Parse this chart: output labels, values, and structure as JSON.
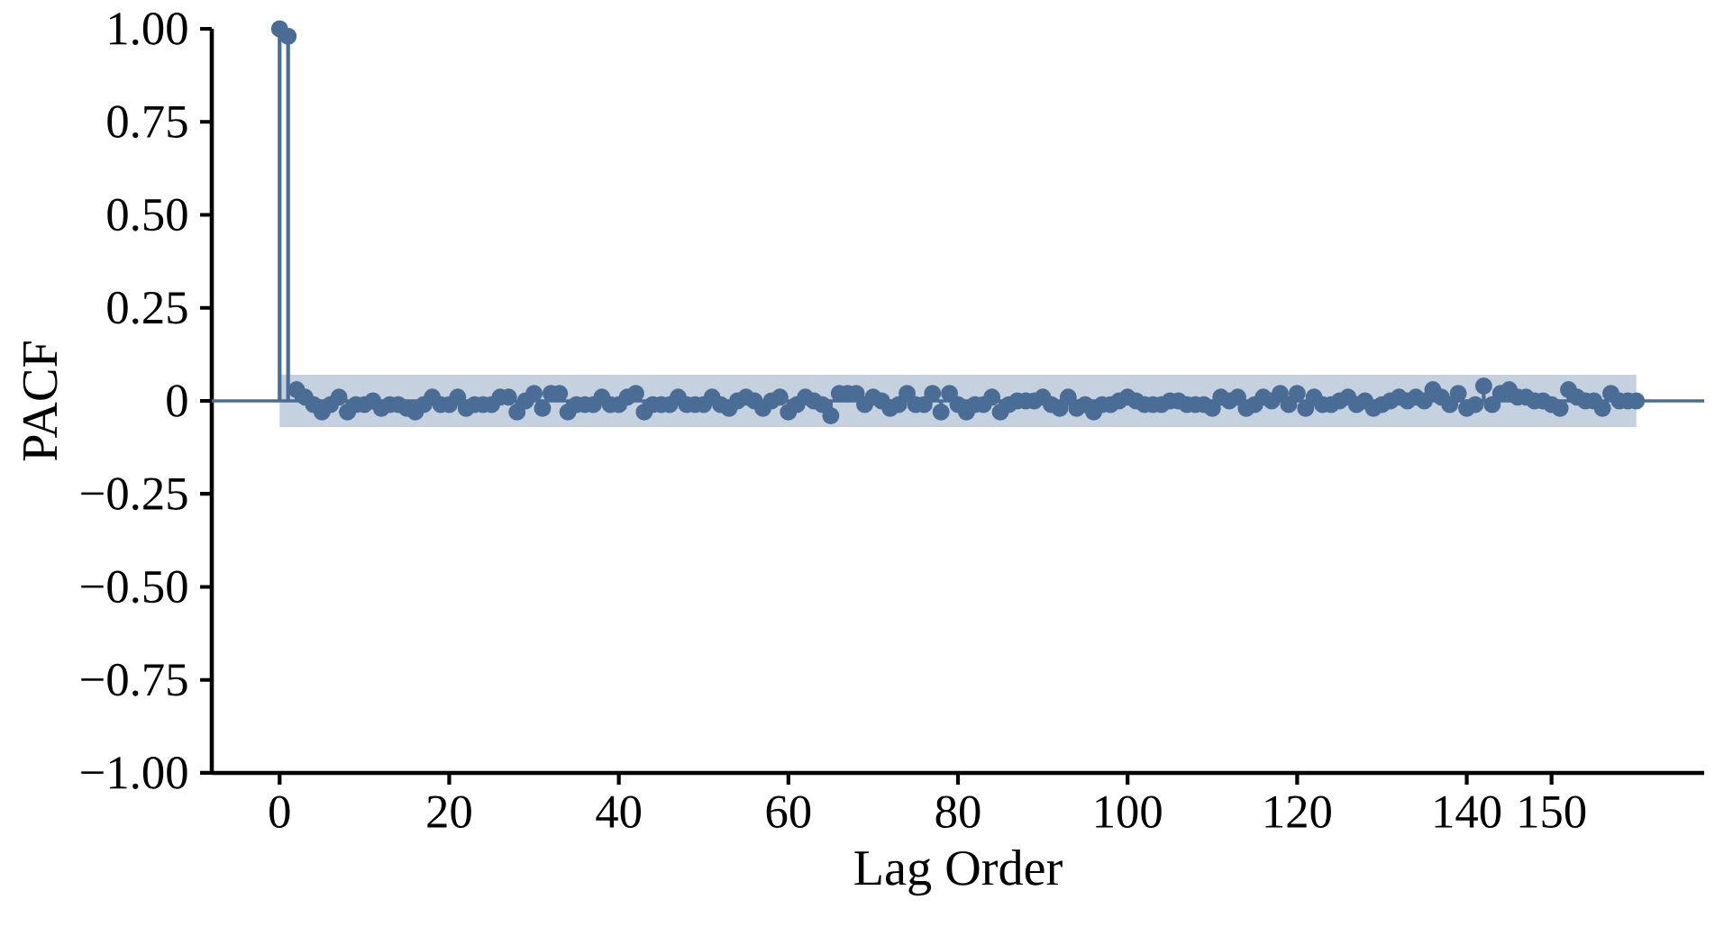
{
  "chart_data": {
    "type": "lollipop",
    "xlabel": "Lag Order",
    "ylabel": "PACF",
    "color": "#4a6d96",
    "marker": "circle",
    "x": [
      0,
      1,
      2,
      3,
      4,
      5,
      6,
      7,
      8,
      9,
      10,
      11,
      12,
      13,
      14,
      15,
      16,
      17,
      18,
      19,
      20,
      21,
      22,
      23,
      24,
      25,
      26,
      27,
      28,
      29,
      30,
      31,
      32,
      33,
      34,
      35,
      36,
      37,
      38,
      39,
      40,
      41,
      42,
      43,
      44,
      45,
      46,
      47,
      48,
      49,
      50,
      51,
      52,
      53,
      54,
      55,
      56,
      57,
      58,
      59,
      60,
      61,
      62,
      63,
      64,
      65,
      66,
      67,
      68,
      69,
      70,
      71,
      72,
      73,
      74,
      75,
      76,
      77,
      78,
      79,
      80,
      81,
      82,
      83,
      84,
      85,
      86,
      87,
      88,
      89,
      90,
      91,
      92,
      93,
      94,
      95,
      96,
      97,
      98,
      99,
      100,
      101,
      102,
      103,
      104,
      105,
      106,
      107,
      108,
      109,
      110,
      111,
      112,
      113,
      114,
      115,
      116,
      117,
      118,
      119,
      120,
      121,
      122,
      123,
      124,
      125,
      126,
      127,
      128,
      129,
      130,
      131,
      132,
      133,
      134,
      135,
      136,
      137,
      138,
      139,
      140,
      141,
      142,
      143,
      144,
      145,
      146,
      147,
      148,
      149,
      150,
      151,
      152,
      153,
      154,
      155,
      156,
      157,
      158,
      159,
      160
    ],
    "values": [
      1.0,
      0.98,
      0.03,
      0.01,
      -0.01,
      -0.03,
      -0.01,
      0.01,
      -0.03,
      -0.01,
      -0.01,
      0.0,
      -0.02,
      -0.01,
      -0.01,
      -0.02,
      -0.03,
      -0.01,
      0.01,
      -0.01,
      -0.01,
      0.01,
      -0.02,
      -0.01,
      -0.01,
      -0.01,
      0.01,
      0.01,
      -0.03,
      0.0,
      0.02,
      -0.02,
      0.02,
      0.02,
      -0.03,
      -0.01,
      -0.01,
      -0.01,
      0.01,
      -0.01,
      -0.01,
      0.01,
      0.02,
      -0.03,
      -0.01,
      -0.01,
      -0.01,
      0.01,
      -0.01,
      -0.01,
      -0.01,
      0.01,
      -0.01,
      -0.02,
      0.0,
      0.01,
      0.0,
      -0.02,
      0.0,
      0.01,
      -0.03,
      -0.01,
      0.01,
      0.0,
      -0.01,
      -0.04,
      0.02,
      0.02,
      0.02,
      -0.01,
      0.01,
      0.0,
      -0.02,
      -0.01,
      0.02,
      -0.01,
      -0.01,
      0.02,
      -0.03,
      0.02,
      -0.01,
      -0.03,
      -0.01,
      -0.01,
      0.01,
      -0.03,
      -0.01,
      0.0,
      0.0,
      0.0,
      0.01,
      -0.01,
      -0.02,
      0.01,
      -0.02,
      -0.01,
      -0.03,
      -0.01,
      -0.01,
      0.0,
      0.01,
      0.0,
      -0.01,
      -0.01,
      -0.01,
      0.0,
      0.0,
      -0.01,
      -0.01,
      -0.01,
      -0.02,
      0.01,
      0.0,
      0.01,
      -0.02,
      -0.01,
      0.01,
      0.0,
      0.02,
      -0.01,
      0.02,
      -0.02,
      0.01,
      -0.01,
      -0.01,
      0.0,
      0.01,
      -0.01,
      0.0,
      -0.02,
      -0.01,
      0.0,
      0.01,
      0.0,
      0.01,
      0.0,
      0.03,
      0.01,
      -0.01,
      0.02,
      -0.02,
      -0.01,
      0.04,
      -0.01,
      0.02,
      0.03,
      0.01,
      0.01,
      0.0,
      0.0,
      -0.01,
      -0.02,
      0.03,
      0.01,
      0.0,
      0.0,
      -0.02,
      0.02,
      0.0,
      0.0,
      0.0
    ],
    "xlim": [
      -8,
      168
    ],
    "ylim": [
      -1,
      1
    ],
    "xticks": [
      0,
      20,
      40,
      60,
      80,
      100,
      120,
      140,
      150
    ],
    "yticks": [
      {
        "value": -1,
        "label": "−1.00"
      },
      {
        "value": -0.75,
        "label": "−0.75"
      },
      {
        "value": -0.5,
        "label": "−0.50"
      },
      {
        "value": -0.25,
        "label": "−0.25"
      },
      0,
      {
        "value": 0.25,
        "label": "0.25"
      },
      {
        "value": 0.5,
        "label": "0.50"
      },
      {
        "value": 0.75,
        "label": "0.75"
      },
      {
        "value": 1,
        "label": "1.00"
      }
    ],
    "ref_lines": [
      {
        "axis": "y",
        "value": 0,
        "color": "#4a6d96"
      }
    ],
    "bands": [
      {
        "axis": "y",
        "from": -0.07,
        "to": 0.07,
        "color": "#c5d1de"
      }
    ]
  }
}
